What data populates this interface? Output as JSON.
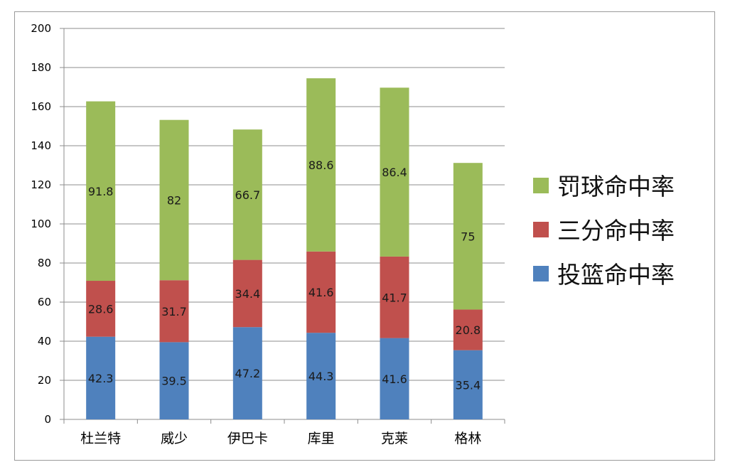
{
  "chart_data": {
    "type": "stacked-bar",
    "title": "",
    "xlabel": "",
    "ylabel": "",
    "categories": [
      "杜兰特",
      "威少",
      "伊巴卡",
      "库里",
      "克莱",
      "格林"
    ],
    "ylim": [
      0,
      200
    ],
    "yticks": [
      0,
      20,
      40,
      60,
      80,
      100,
      120,
      140,
      160,
      180,
      200
    ],
    "grid": true,
    "legend_position": "right",
    "series": [
      {
        "name": "投篮命中率",
        "color": "#4f81bd",
        "values": [
          42.3,
          39.5,
          47.2,
          44.3,
          41.6,
          35.4
        ]
      },
      {
        "name": "三分命中率",
        "color": "#c0504d",
        "values": [
          28.6,
          31.7,
          34.4,
          41.6,
          41.7,
          20.8
        ]
      },
      {
        "name": "罚球命中率",
        "color": "#9bbb59",
        "values": [
          91.8,
          82,
          66.7,
          88.6,
          86.4,
          75
        ]
      }
    ],
    "legend_order": [
      "罚球命中率",
      "三分命中率",
      "投篮命中率"
    ]
  }
}
